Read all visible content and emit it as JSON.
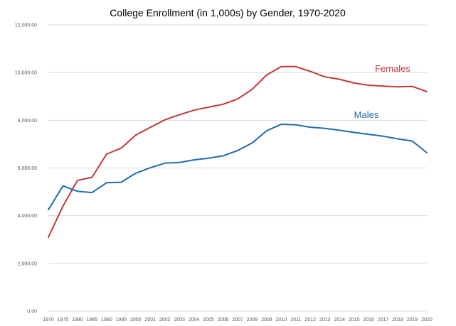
{
  "chart_data": {
    "type": "line",
    "title": "College Enrollment (in 1,000s) by Gender, 1970-2020",
    "xlabel": "",
    "ylabel": "",
    "ylim": [
      0,
      12000
    ],
    "yticks": [
      "0.00",
      "2,000.00",
      "4,000.00",
      "6,000.00",
      "8,000.00",
      "10,000.00",
      "12,000.00"
    ],
    "grid": true,
    "legend": "none",
    "categories": [
      "1970",
      "1975",
      "1980",
      "1985",
      "1990",
      "1995",
      "2000",
      "2001",
      "2002",
      "2003",
      "2004",
      "2005",
      "2006",
      "2007",
      "2008",
      "2009",
      "2010",
      "2011",
      "2012",
      "2013",
      "2014",
      "2015",
      "2016",
      "2017",
      "2018",
      "2019",
      "2020"
    ],
    "series": [
      {
        "name": "Females",
        "color": "#c0393b",
        "values": [
          3100,
          4400,
          5480,
          5610,
          6580,
          6830,
          7380,
          7700,
          8020,
          8230,
          8420,
          8550,
          8670,
          8890,
          9300,
          9900,
          10250,
          10250,
          10050,
          9820,
          9720,
          9560,
          9470,
          9430,
          9400,
          9420,
          9200
        ]
      },
      {
        "name": "Males",
        "color": "#1f6bb0",
        "values": [
          4250,
          5250,
          5020,
          4970,
          5380,
          5400,
          5780,
          6010,
          6200,
          6230,
          6340,
          6410,
          6510,
          6730,
          7050,
          7560,
          7830,
          7810,
          7710,
          7660,
          7580,
          7490,
          7410,
          7330,
          7220,
          7130,
          6640
        ]
      }
    ]
  }
}
